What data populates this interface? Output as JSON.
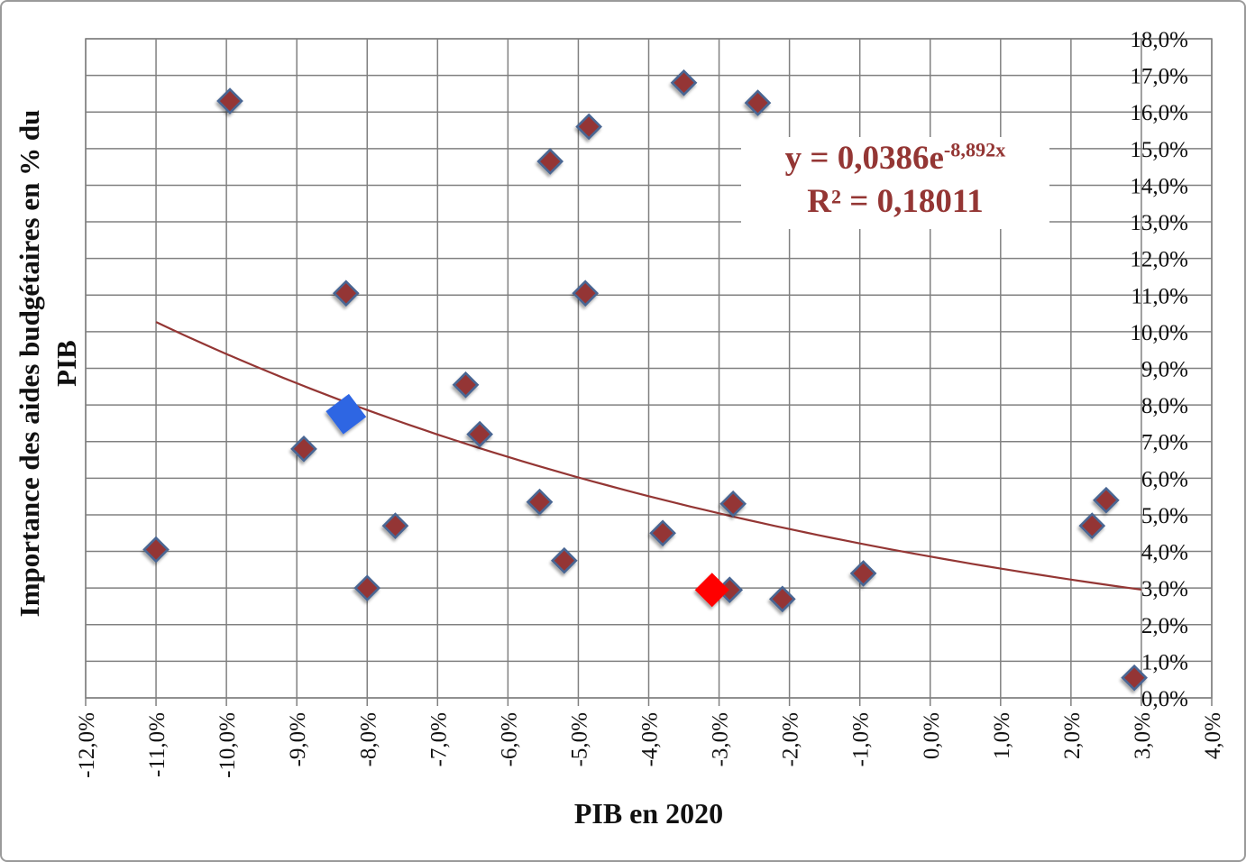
{
  "chart_data": {
    "type": "scatter",
    "title": "",
    "xlabel": "PIB en 2020",
    "ylabel": [
      "Importance des aides budgétaires en % du",
      "PIB"
    ],
    "xlim": [
      -12,
      4
    ],
    "ylim": [
      0,
      18
    ],
    "grid": true,
    "legend": "none",
    "x_ticks": [
      {
        "v": -12,
        "label": "-12,0%"
      },
      {
        "v": -11,
        "label": "-11,0%"
      },
      {
        "v": -10,
        "label": "-10,0%"
      },
      {
        "v": -9,
        "label": "-9,0%"
      },
      {
        "v": -8,
        "label": "-8,0%"
      },
      {
        "v": -7,
        "label": "-7,0%"
      },
      {
        "v": -6,
        "label": "-6,0%"
      },
      {
        "v": -5,
        "label": "-5,0%"
      },
      {
        "v": -4,
        "label": "-4,0%"
      },
      {
        "v": -3,
        "label": "-3,0%"
      },
      {
        "v": -2,
        "label": "-2,0%"
      },
      {
        "v": -1,
        "label": "-1,0%"
      },
      {
        "v": 0,
        "label": "0,0%"
      },
      {
        "v": 1,
        "label": "1,0%"
      },
      {
        "v": 2,
        "label": "2,0%"
      },
      {
        "v": 3,
        "label": "3,0%"
      },
      {
        "v": 4,
        "label": "4,0%"
      }
    ],
    "y_ticks": [
      {
        "v": 0,
        "label": "0,0%"
      },
      {
        "v": 1,
        "label": "1,0%"
      },
      {
        "v": 2,
        "label": "2,0%"
      },
      {
        "v": 3,
        "label": "3,0%"
      },
      {
        "v": 4,
        "label": "4,0%"
      },
      {
        "v": 5,
        "label": "5,0%"
      },
      {
        "v": 6,
        "label": "6,0%"
      },
      {
        "v": 7,
        "label": "7,0%"
      },
      {
        "v": 8,
        "label": "8,0%"
      },
      {
        "v": 9,
        "label": "9,0%"
      },
      {
        "v": 10,
        "label": "10,0%"
      },
      {
        "v": 11,
        "label": "11,0%"
      },
      {
        "v": 12,
        "label": "12,0%"
      },
      {
        "v": 13,
        "label": "13,0%"
      },
      {
        "v": 14,
        "label": "14,0%"
      },
      {
        "v": 15,
        "label": "15,0%"
      },
      {
        "v": 16,
        "label": "16,0%"
      },
      {
        "v": 17,
        "label": "17,0%"
      },
      {
        "v": 18,
        "label": "18,0%"
      }
    ],
    "colors": {
      "grid": "#808080",
      "marker_fill": "#943634",
      "marker_stroke": "#4A6693",
      "highlight_blue": "#2F66E3",
      "highlight_red": "#FF0000",
      "trend": "#943634",
      "equation_text": "#943634"
    },
    "series": [
      {
        "name": "points",
        "marker": "diamond",
        "points": [
          [
            -11.0,
            4.05
          ],
          [
            -9.95,
            16.3
          ],
          [
            -8.9,
            6.8
          ],
          [
            -8.3,
            11.05
          ],
          [
            -8.0,
            3.0
          ],
          [
            -7.6,
            4.7
          ],
          [
            -6.6,
            8.55
          ],
          [
            -6.4,
            7.2
          ],
          [
            -5.55,
            5.35
          ],
          [
            -5.4,
            14.65
          ],
          [
            -5.2,
            3.75
          ],
          [
            -4.9,
            11.05
          ],
          [
            -4.85,
            15.6
          ],
          [
            -3.8,
            4.5
          ],
          [
            -3.5,
            16.8
          ],
          [
            -2.85,
            2.95
          ],
          [
            -2.8,
            5.3
          ],
          [
            -2.45,
            16.25
          ],
          [
            -2.1,
            2.7
          ],
          [
            -0.95,
            3.4
          ],
          [
            2.3,
            4.7
          ],
          [
            2.5,
            5.4
          ],
          [
            2.9,
            0.55
          ]
        ]
      },
      {
        "name": "highlight-blue",
        "marker": "large-diamond",
        "points": [
          [
            -8.3,
            7.75
          ]
        ]
      },
      {
        "name": "highlight-red",
        "marker": "large-diamond",
        "points": [
          [
            -3.1,
            2.95
          ]
        ]
      }
    ],
    "trendline": {
      "type": "exponential",
      "a": 0.0386,
      "b": -8.892,
      "a_pct": 3.86,
      "b_per_pct": -0.08892,
      "x_start": -11,
      "x_end": 3,
      "equation_prefix": "y = 0,0386e",
      "equation_exponent": "-8,892x",
      "r_squared": "R² = 0,18011"
    }
  }
}
